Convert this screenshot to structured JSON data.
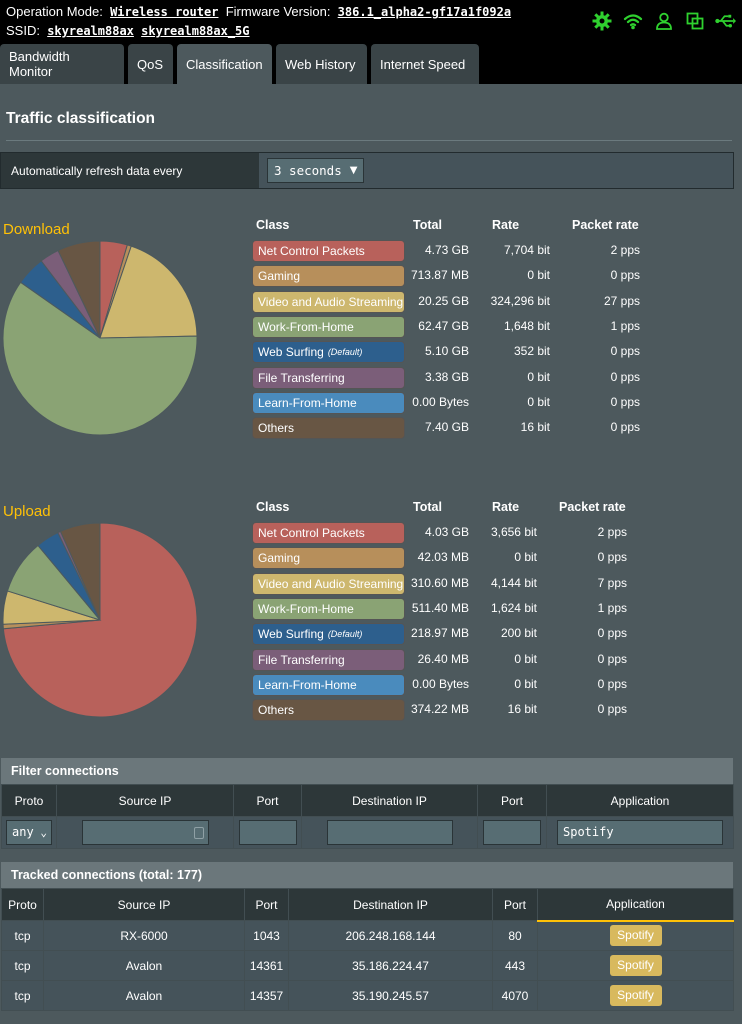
{
  "header": {
    "operation_mode_label": "Operation Mode:",
    "operation_mode_value": "Wireless router",
    "firmware_label": "Firmware Version:",
    "firmware_value": "386.1_alpha2-gf17a1f092a",
    "ssid_label": "SSID:",
    "ssid_1": "skyrealm88ax",
    "ssid_2": "skyrealm88ax_5G",
    "status_icons": [
      "gear-icon",
      "wifi-icon",
      "user-icon",
      "copy-icon",
      "usb-icon"
    ],
    "icon_color": "#2fd12f"
  },
  "tabs": [
    {
      "label": "Bandwidth Monitor"
    },
    {
      "label": "QoS"
    },
    {
      "label": "Classification",
      "active": true
    },
    {
      "label": "Web History"
    },
    {
      "label": "Internet Speed"
    }
  ],
  "page_title": "Traffic classification",
  "refresh": {
    "label": "Automatically refresh data every",
    "value": "3 seconds"
  },
  "columns": {
    "class": "Class",
    "total": "Total",
    "rate": "Rate",
    "packet_rate": "Packet rate"
  },
  "default_tag": "(Default)",
  "download": {
    "label": "Download",
    "rows": [
      {
        "class": "Net Control Packets",
        "color": "#b8615b",
        "total": "4.73 GB",
        "rate": "7,704 bit",
        "packet_rate": "2 pps"
      },
      {
        "class": "Gaming",
        "color": "#b78f5b",
        "total": "713.87 MB",
        "rate": "0 bit",
        "packet_rate": "0 pps"
      },
      {
        "class": "Video and Audio Streaming",
        "color": "#cdb76e",
        "total": "20.25 GB",
        "rate": "324,296 bit",
        "packet_rate": "27 pps"
      },
      {
        "class": "Work-From-Home",
        "color": "#8aa374",
        "total": "62.47 GB",
        "rate": "1,648 bit",
        "packet_rate": "1 pps"
      },
      {
        "class": "Web Surfing",
        "color": "#2d5f8d",
        "total": "5.10 GB",
        "rate": "352 bit",
        "packet_rate": "0 pps",
        "default": true
      },
      {
        "class": "File Transferring",
        "color": "#7b5e79",
        "total": "3.38 GB",
        "rate": "0 bit",
        "packet_rate": "0 pps"
      },
      {
        "class": "Learn-From-Home",
        "color": "#4a8bbd",
        "total": "0.00 Bytes",
        "rate": "0 bit",
        "packet_rate": "0 pps"
      },
      {
        "class": "Others",
        "color": "#685644",
        "total": "7.40 GB",
        "rate": "16 bit",
        "packet_rate": "0 pps"
      }
    ]
  },
  "upload": {
    "label": "Upload",
    "rows": [
      {
        "class": "Net Control Packets",
        "color": "#b8615b",
        "total": "4.03 GB",
        "rate": "3,656 bit",
        "packet_rate": "2 pps"
      },
      {
        "class": "Gaming",
        "color": "#b78f5b",
        "total": "42.03 MB",
        "rate": "0 bit",
        "packet_rate": "0 pps"
      },
      {
        "class": "Video and Audio Streaming",
        "color": "#cdb76e",
        "total": "310.60 MB",
        "rate": "4,144 bit",
        "packet_rate": "7 pps"
      },
      {
        "class": "Work-From-Home",
        "color": "#8aa374",
        "total": "511.40 MB",
        "rate": "1,624 bit",
        "packet_rate": "1 pps"
      },
      {
        "class": "Web Surfing",
        "color": "#2d5f8d",
        "total": "218.97 MB",
        "rate": "200 bit",
        "packet_rate": "0 pps",
        "default": true
      },
      {
        "class": "File Transferring",
        "color": "#7b5e79",
        "total": "26.40 MB",
        "rate": "0 bit",
        "packet_rate": "0 pps"
      },
      {
        "class": "Learn-From-Home",
        "color": "#4a8bbd",
        "total": "0.00 Bytes",
        "rate": "0 bit",
        "packet_rate": "0 pps"
      },
      {
        "class": "Others",
        "color": "#685644",
        "total": "374.22 MB",
        "rate": "16 bit",
        "packet_rate": "0 pps"
      }
    ]
  },
  "filter": {
    "title": "Filter connections",
    "headers": [
      "Proto",
      "Source IP",
      "Port",
      "Destination IP",
      "Port",
      "Application"
    ],
    "proto_value": "any",
    "application_value": "Spotify"
  },
  "tracked": {
    "title": "Tracked connections (total: 177)",
    "headers": [
      "Proto",
      "Source IP",
      "Port",
      "Destination IP",
      "Port",
      "Application"
    ],
    "rows": [
      {
        "proto": "tcp",
        "source_ip": "RX-6000",
        "sport": "1043",
        "dest_ip": "206.248.168.144",
        "dport": "80",
        "application": "Spotify"
      },
      {
        "proto": "tcp",
        "source_ip": "Avalon",
        "sport": "14361",
        "dest_ip": "35.186.224.47",
        "dport": "443",
        "application": "Spotify"
      },
      {
        "proto": "tcp",
        "source_ip": "Avalon",
        "sport": "14357",
        "dest_ip": "35.190.245.57",
        "dport": "4070",
        "application": "Spotify"
      }
    ]
  }
}
